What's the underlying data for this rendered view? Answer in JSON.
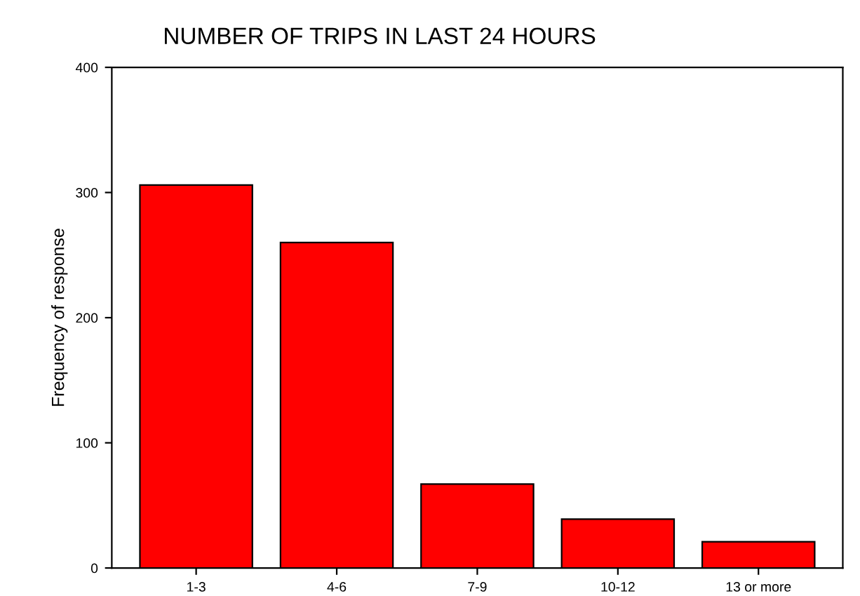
{
  "chart_data": {
    "type": "bar",
    "title": "NUMBER OF TRIPS IN LAST 24 HOURS",
    "ylabel": "Frequency of response",
    "categories": [
      "1-3",
      "4-6",
      "7-9",
      "10-12",
      "13 or more"
    ],
    "values": [
      306,
      260,
      67,
      39,
      21
    ],
    "color": "#ff0000",
    "ylim": [
      0,
      400
    ],
    "yticks": [
      0,
      100,
      200,
      300,
      400
    ],
    "grid": false,
    "legend": false
  }
}
